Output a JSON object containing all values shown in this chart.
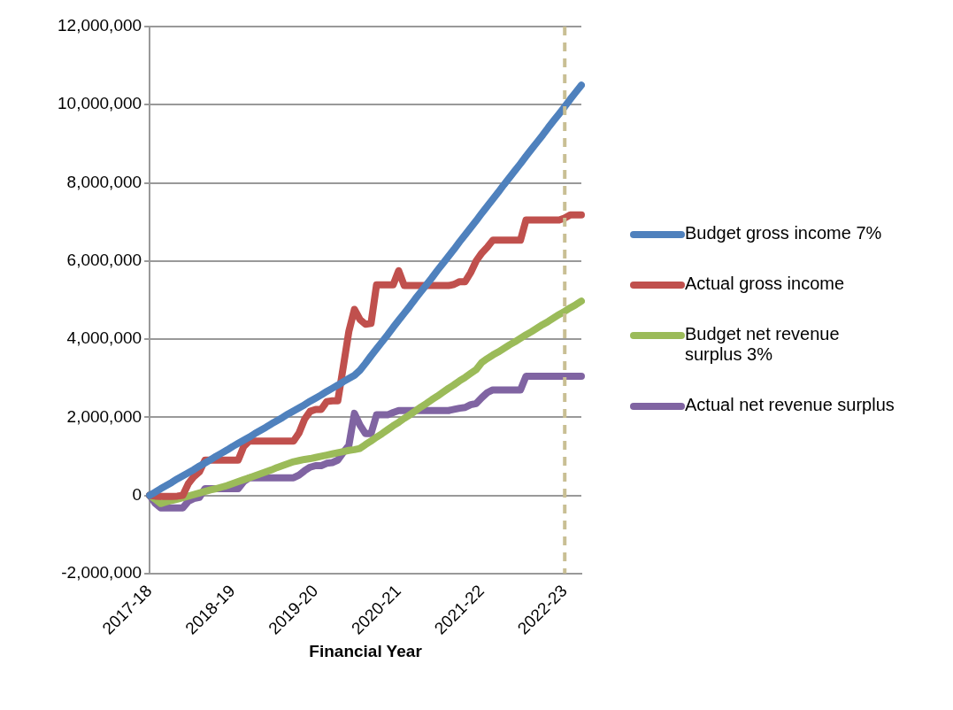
{
  "chart_data": {
    "type": "line",
    "xlabel": "Financial Year",
    "categories": [
      "2017-18",
      null,
      null,
      null,
      null,
      null,
      null,
      null,
      null,
      null,
      null,
      null,
      null,
      null,
      null,
      "2018-19",
      null,
      null,
      null,
      null,
      null,
      null,
      null,
      null,
      null,
      null,
      null,
      null,
      null,
      null,
      "2019-20",
      null,
      null,
      null,
      null,
      null,
      null,
      null,
      null,
      null,
      null,
      null,
      null,
      null,
      null,
      "2020-21",
      null,
      null,
      null,
      null,
      null,
      null,
      null,
      null,
      null,
      null,
      null,
      null,
      null,
      null,
      "2021-22",
      null,
      null,
      null,
      null,
      null,
      null,
      null,
      null,
      null,
      null,
      null,
      null,
      null,
      null,
      "2022-23",
      null,
      null,
      null
    ],
    "series": [
      {
        "name": "Budget gross income 7%",
        "color": "#4f81bd",
        "values": [
          0,
          80000,
          170000,
          250000,
          330000,
          420000,
          500000,
          580000,
          660000,
          750000,
          830000,
          910000,
          1000000,
          1080000,
          1160000,
          1250000,
          1330000,
          1410000,
          1490000,
          1580000,
          1660000,
          1740000,
          1830000,
          1910000,
          1990000,
          2080000,
          2160000,
          2240000,
          2320000,
          2410000,
          2490000,
          2570000,
          2660000,
          2740000,
          2820000,
          2910000,
          2990000,
          3070000,
          3200000,
          3380000,
          3570000,
          3750000,
          3930000,
          4110000,
          4300000,
          4480000,
          4660000,
          4840000,
          5030000,
          5210000,
          5390000,
          5570000,
          5760000,
          5940000,
          6120000,
          6300000,
          6490000,
          6670000,
          6850000,
          7030000,
          7220000,
          7400000,
          7580000,
          7760000,
          7950000,
          8130000,
          8310000,
          8490000,
          8680000,
          8860000,
          9040000,
          9220000,
          9410000,
          9590000,
          9770000,
          9950000,
          10140000,
          10320000,
          10500000
        ]
      },
      {
        "name": "Actual gross income",
        "color": "#c0504d",
        "values": [
          0,
          -20000,
          -30000,
          -30000,
          -30000,
          -20000,
          0,
          300000,
          480000,
          600000,
          900000,
          900000,
          900000,
          900000,
          900000,
          900000,
          900000,
          1250000,
          1390000,
          1390000,
          1390000,
          1390000,
          1390000,
          1390000,
          1390000,
          1390000,
          1390000,
          1600000,
          1950000,
          2150000,
          2200000,
          2200000,
          2400000,
          2420000,
          2420000,
          3300000,
          4200000,
          4760000,
          4500000,
          4380000,
          4400000,
          5390000,
          5390000,
          5390000,
          5390000,
          5750000,
          5370000,
          5370000,
          5370000,
          5370000,
          5370000,
          5370000,
          5370000,
          5370000,
          5370000,
          5400000,
          5470000,
          5470000,
          5700000,
          6000000,
          6200000,
          6350000,
          6530000,
          6530000,
          6530000,
          6530000,
          6530000,
          6530000,
          7050000,
          7050000,
          7050000,
          7050000,
          7050000,
          7050000,
          7050000,
          7100000,
          7180000,
          7180000,
          7180000
        ]
      },
      {
        "name": "Budget net revenue surplus 3%",
        "color": "#9bbb59",
        "values": [
          0,
          -100000,
          -210000,
          -170000,
          -130000,
          -100000,
          -60000,
          -20000,
          20000,
          60000,
          100000,
          140000,
          170000,
          210000,
          250000,
          300000,
          350000,
          400000,
          450000,
          500000,
          550000,
          600000,
          650000,
          710000,
          760000,
          810000,
          860000,
          890000,
          920000,
          940000,
          970000,
          1000000,
          1030000,
          1060000,
          1090000,
          1120000,
          1150000,
          1170000,
          1200000,
          1300000,
          1390000,
          1490000,
          1580000,
          1680000,
          1780000,
          1870000,
          1970000,
          2060000,
          2160000,
          2260000,
          2350000,
          2450000,
          2540000,
          2640000,
          2740000,
          2830000,
          2930000,
          3020000,
          3120000,
          3220000,
          3400000,
          3500000,
          3590000,
          3670000,
          3760000,
          3850000,
          3930000,
          4020000,
          4110000,
          4190000,
          4280000,
          4370000,
          4450000,
          4540000,
          4630000,
          4710000,
          4800000,
          4880000,
          4970000
        ]
      },
      {
        "name": "Actual net revenue surplus",
        "color": "#8064a2",
        "values": [
          0,
          -200000,
          -320000,
          -320000,
          -320000,
          -320000,
          -320000,
          -150000,
          -80000,
          -50000,
          170000,
          170000,
          170000,
          170000,
          170000,
          170000,
          170000,
          350000,
          450000,
          450000,
          450000,
          450000,
          450000,
          450000,
          450000,
          450000,
          450000,
          520000,
          630000,
          720000,
          760000,
          760000,
          820000,
          840000,
          900000,
          1100000,
          1280000,
          2100000,
          1800000,
          1580000,
          1580000,
          2060000,
          2060000,
          2060000,
          2120000,
          2170000,
          2170000,
          2170000,
          2170000,
          2170000,
          2170000,
          2170000,
          2170000,
          2170000,
          2170000,
          2200000,
          2230000,
          2250000,
          2320000,
          2350000,
          2500000,
          2630000,
          2700000,
          2700000,
          2700000,
          2700000,
          2700000,
          2700000,
          3050000,
          3050000,
          3050000,
          3050000,
          3050000,
          3050000,
          3050000,
          3050000,
          3050000,
          3050000,
          3050000
        ]
      }
    ],
    "ylim": [
      -2000000,
      12000000
    ],
    "yticks": [
      {
        "value": -2000000,
        "label": "-2,000,000"
      },
      0,
      {
        "value": 2000000,
        "label": "2,000,000"
      },
      {
        "value": 4000000,
        "label": "4,000,000"
      },
      {
        "value": 6000000,
        "label": "6,000,000"
      },
      {
        "value": 8000000,
        "label": "8,000,000"
      },
      {
        "value": 10000000,
        "label": "10,000,000"
      },
      {
        "value": 12000000,
        "label": "12,000,000"
      }
    ],
    "grid": "y",
    "legend": "right",
    "marker": "none",
    "line_style": "solid",
    "ref_lines": [
      {
        "axis": "x",
        "value": "2022-23",
        "color": "#c9bf94",
        "line_style": "dashed"
      }
    ]
  }
}
